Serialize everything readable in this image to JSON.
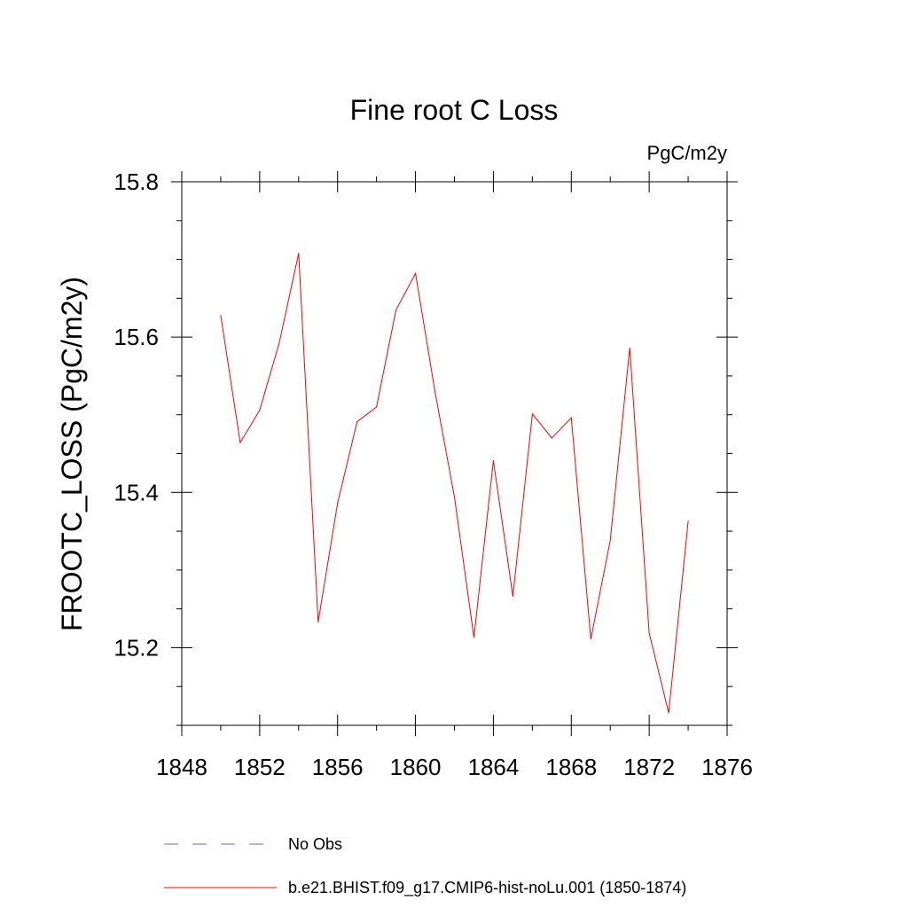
{
  "chart_data": {
    "type": "line",
    "title": "Fine root C Loss",
    "units": "PgC/m2y",
    "xlabel": "",
    "ylabel": "FROOTC_LOSS  (PgC/m2y)",
    "xlim": [
      1848,
      1876
    ],
    "ylim": [
      15.1,
      15.8
    ],
    "x_ticks": [
      1848,
      1852,
      1856,
      1860,
      1864,
      1868,
      1872,
      1876
    ],
    "x_tick_labels": [
      "1848",
      "1852",
      "1856",
      "1860",
      "1864",
      "1868",
      "1872",
      "1876"
    ],
    "y_ticks": [
      15.2,
      15.4,
      15.6,
      15.8
    ],
    "y_tick_labels": [
      "15.2",
      "15.4",
      "15.6",
      "15.8"
    ],
    "y_minor_ticks": [
      15.1,
      15.15,
      15.25,
      15.3,
      15.35,
      15.45,
      15.5,
      15.55,
      15.65,
      15.7,
      15.75
    ],
    "x_minor_ticks": [
      1850,
      1854,
      1858,
      1862,
      1866,
      1870,
      1874
    ],
    "grid": false,
    "legend_position": "bottom",
    "series": [
      {
        "name": "b.e21.BHIST.f09_g17.CMIP6-hist-noLu.001 (1850-1874)",
        "color": "#ff0000",
        "style": "solid",
        "x": [
          1850,
          1851,
          1852,
          1853,
          1854,
          1855,
          1856,
          1857,
          1858,
          1859,
          1860,
          1861,
          1862,
          1863,
          1864,
          1865,
          1866,
          1867,
          1868,
          1869,
          1870,
          1871,
          1872,
          1873,
          1874
        ],
        "values": [
          15.628,
          15.464,
          15.506,
          15.592,
          15.708,
          15.233,
          15.386,
          15.491,
          15.51,
          15.635,
          15.682,
          15.53,
          15.394,
          15.213,
          15.441,
          15.266,
          15.501,
          15.47,
          15.496,
          15.211,
          15.338,
          15.586,
          15.219,
          15.116,
          15.363
        ]
      }
    ],
    "legend": [
      {
        "label": "No Obs",
        "color": "#6b6bc0",
        "style": "dashed"
      },
      {
        "label": "b.e21.BHIST.f09_g17.CMIP6-hist-noLu.001 (1850-1874)",
        "color": "#ff0000",
        "style": "solid"
      }
    ]
  }
}
